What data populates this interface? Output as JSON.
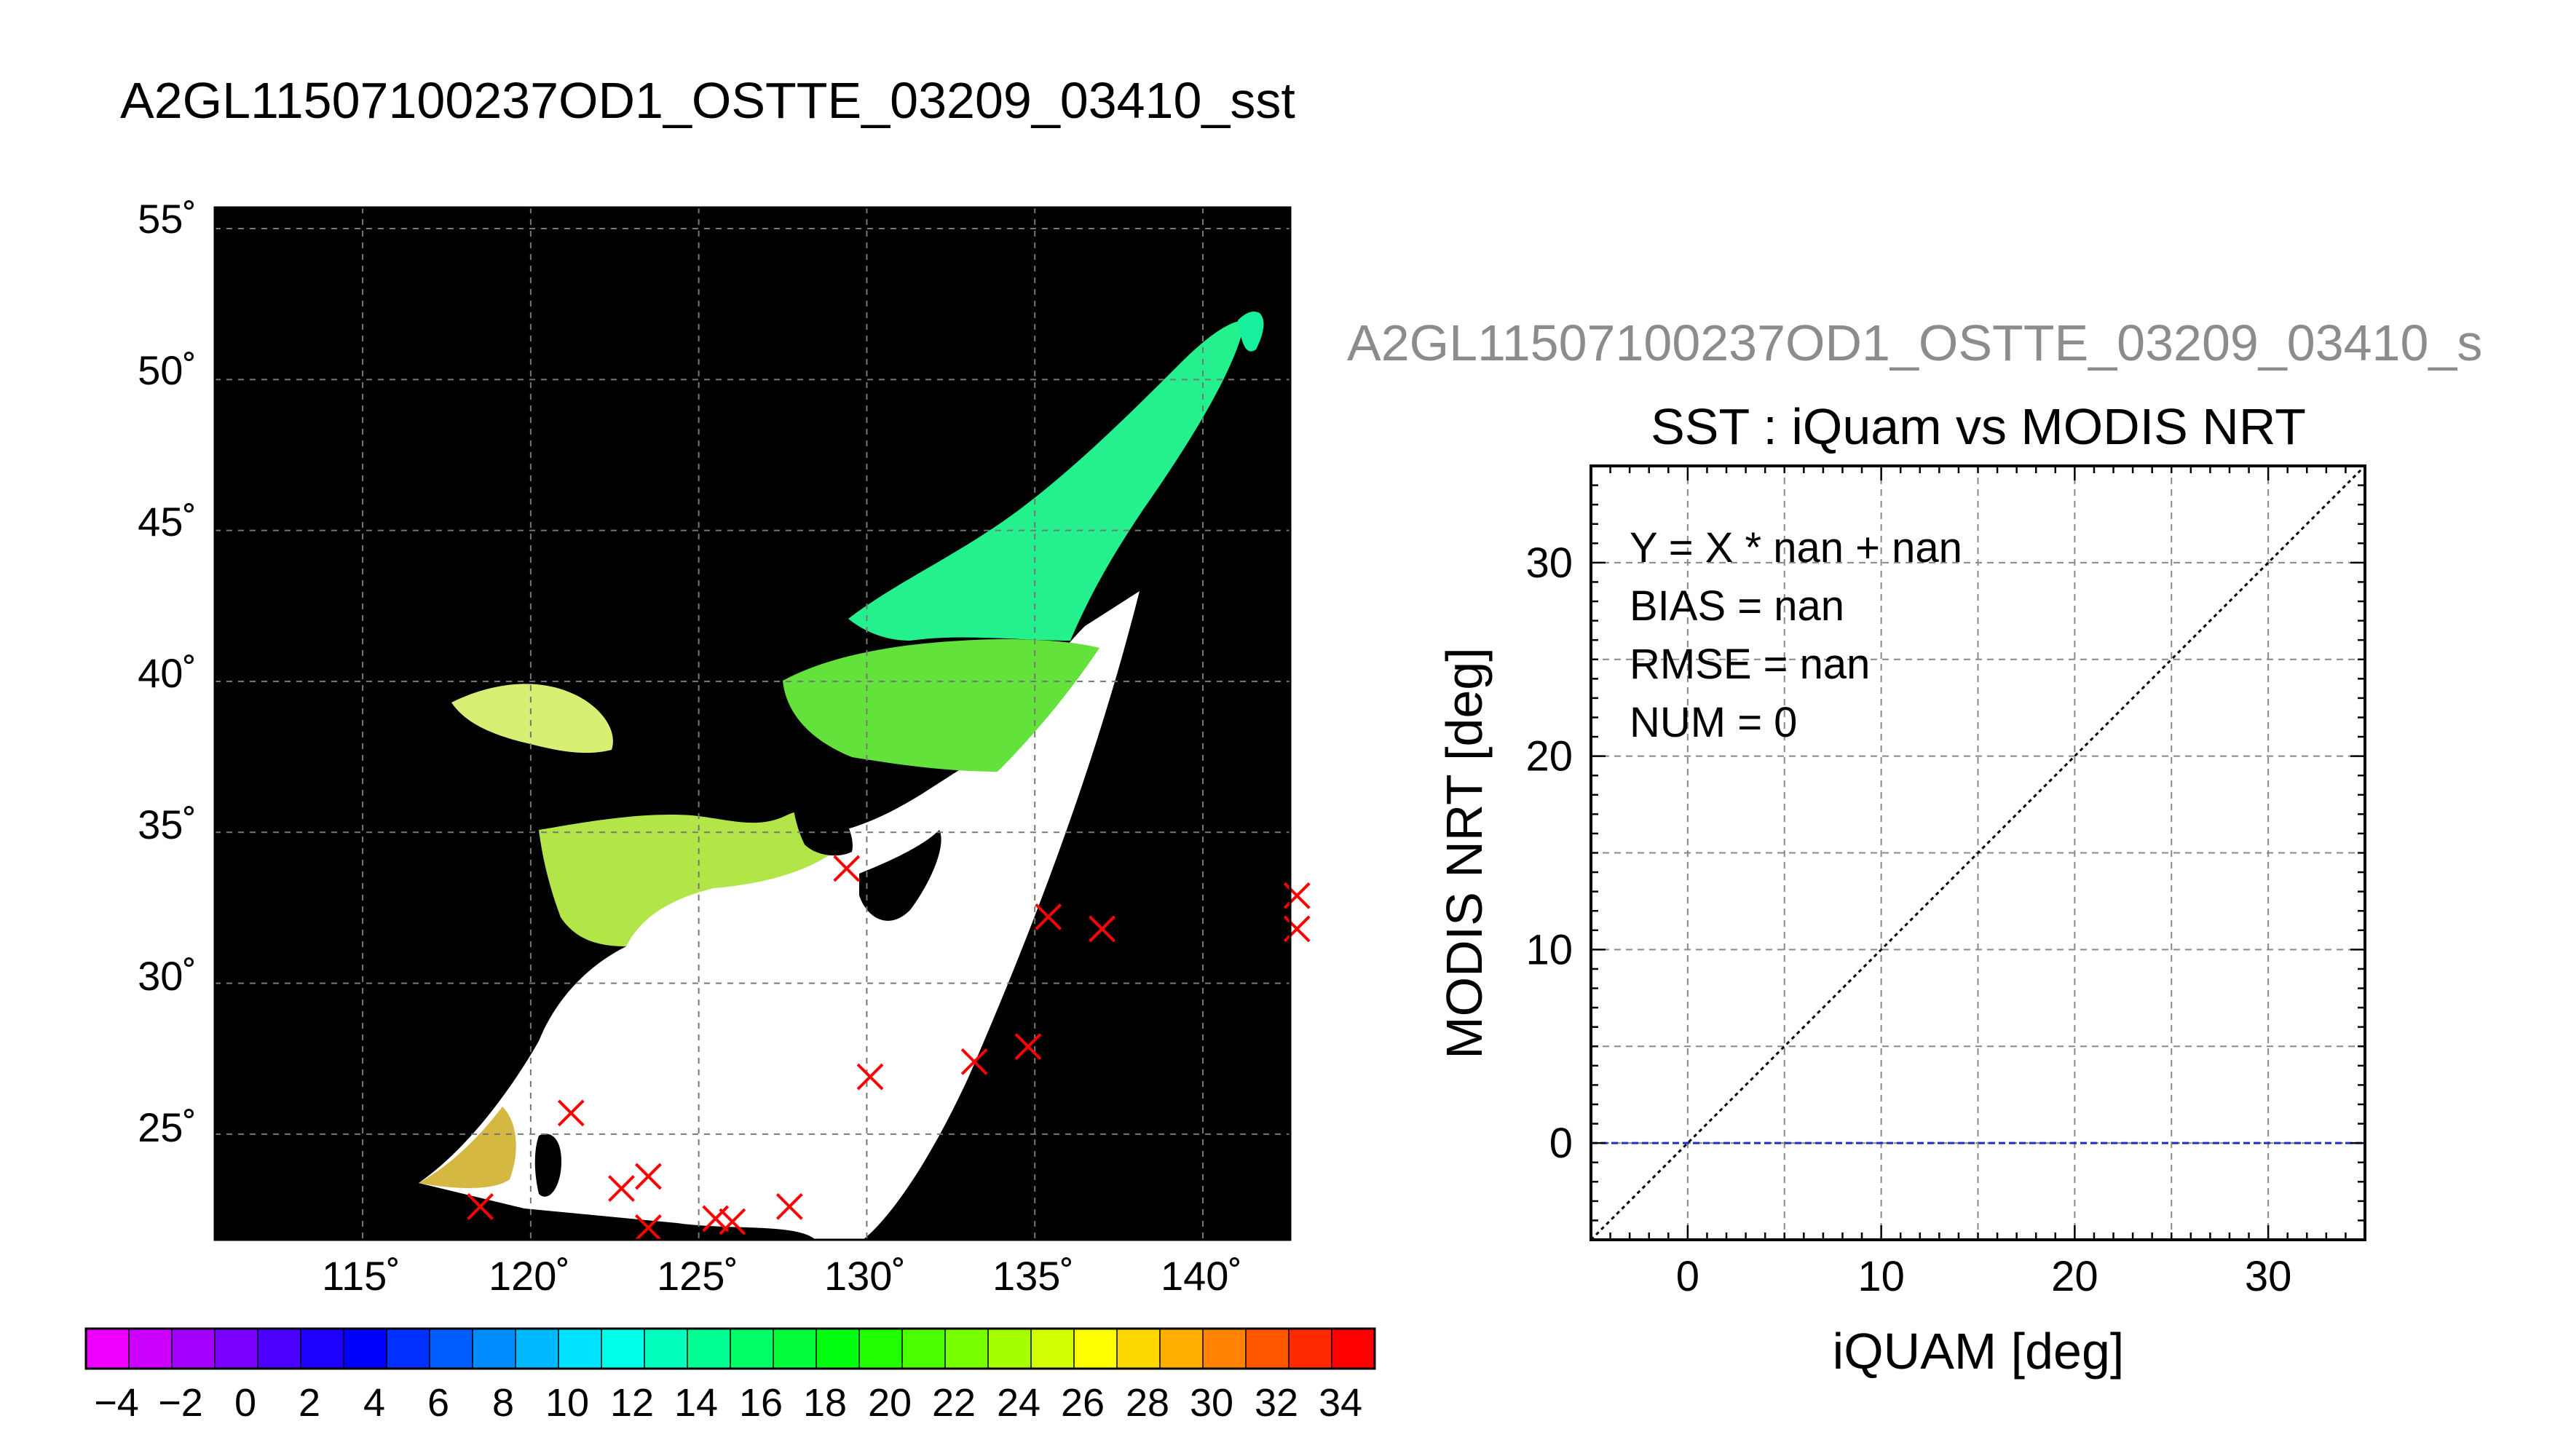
{
  "map": {
    "title": "A2GL11507100237OD1_OSTTE_03209_03410_sst",
    "lat_ticks": [
      "55˚",
      "50˚",
      "45˚",
      "40˚",
      "35˚",
      "30˚",
      "25˚"
    ],
    "lon_ticks": [
      "115˚",
      "120˚",
      "125˚",
      "130˚",
      "135˚",
      "140˚"
    ],
    "colorbar": {
      "labels": [
        "−4",
        "−2",
        "0",
        "2",
        "4",
        "6",
        "8",
        "10",
        "12",
        "14",
        "16",
        "18",
        "20",
        "22",
        "24",
        "26",
        "28",
        "30",
        "32",
        "34"
      ],
      "colors": [
        "#ee00ff",
        "#cc00ff",
        "#a200ff",
        "#7a00ff",
        "#4b00ff",
        "#1e00ff",
        "#0000ff",
        "#0030ff",
        "#005eff",
        "#008cff",
        "#00b8ff",
        "#00e2ff",
        "#00ffe6",
        "#00ffbd",
        "#00ff92",
        "#00ff66",
        "#00ff3a",
        "#00ff10",
        "#22ff00",
        "#4cff00",
        "#78ff00",
        "#a6ff00",
        "#d2ff00",
        "#ffff00",
        "#ffd800",
        "#ffae00",
        "#ff8200",
        "#ff5600",
        "#ff2a00",
        "#ff0000"
      ]
    },
    "match_points_lonlat": [
      [
        118.5,
        22.6
      ],
      [
        121.2,
        25.7
      ],
      [
        122.7,
        23.2
      ],
      [
        123.5,
        23.6
      ],
      [
        123.5,
        21.9
      ],
      [
        125.5,
        22.2
      ],
      [
        126.0,
        22.1
      ],
      [
        127.7,
        22.6
      ],
      [
        129.4,
        33.8
      ],
      [
        130.1,
        26.9
      ],
      [
        133.2,
        27.4
      ],
      [
        134.8,
        27.9
      ],
      [
        135.4,
        32.2
      ],
      [
        137.0,
        31.8
      ],
      [
        142.8,
        32.9
      ],
      [
        142.8,
        31.8
      ]
    ],
    "colors": {
      "land_bg": "#000000",
      "marker": "#ff0000",
      "grid": "#777777"
    }
  },
  "scatter": {
    "file_label": "A2GL11507100237OD1_OSTTE_03209_03410_s",
    "title": "SST : iQuam vs MODIS NRT",
    "stats": [
      "Y = X * nan + nan",
      "BIAS = nan",
      "RMSE = nan",
      "NUM = 0"
    ],
    "colors": {
      "file_label": "#8c8c8c",
      "zero_line": "#1f2fbf",
      "one_to_one": "#000000"
    }
  },
  "chart_data": {
    "type": "scatter",
    "title": "SST : iQuam vs MODIS NRT",
    "xlabel": "iQUAM [deg]",
    "ylabel": "MODIS NRT [deg]",
    "xlim": [
      -5,
      35
    ],
    "ylim": [
      -5,
      35
    ],
    "x_ticks": [
      0,
      10,
      20,
      30
    ],
    "y_ticks": [
      0,
      10,
      20,
      30
    ],
    "grid": true,
    "series": [],
    "reference_lines": [
      {
        "x": [
          -5,
          35
        ],
        "y": [
          -5,
          35
        ],
        "style": "dotted"
      },
      {
        "x": [
          -5,
          35
        ],
        "y": [
          0,
          0
        ],
        "style": "dashed"
      }
    ]
  }
}
